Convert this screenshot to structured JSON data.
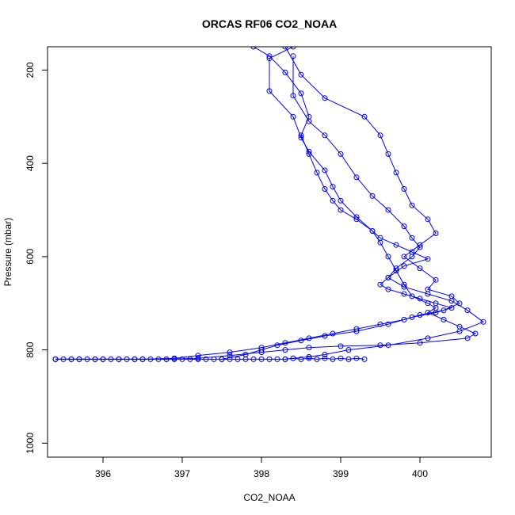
{
  "chart_data": {
    "type": "scatter",
    "title": "ORCAS RF06 CO2_NOAA",
    "xlabel": "CO2_NOAA",
    "ylabel": "Pressure (mbar)",
    "xlim": [
      395.3,
      400.9
    ],
    "ylim": [
      1030,
      150
    ],
    "y_reversed": true,
    "x_ticks": [
      396,
      397,
      398,
      399,
      400
    ],
    "y_ticks": [
      200,
      400,
      600,
      800,
      1000
    ],
    "grid": false,
    "legend": "none",
    "marker": "open-circle",
    "connected": true,
    "color": "#0000ff",
    "series": [
      {
        "x": [
          397.9,
          398.1,
          398.3,
          398.5,
          398.6,
          398.5,
          398.6,
          398.7,
          398.8,
          398.9,
          399.0,
          399.2,
          399.4,
          399.5,
          399.6,
          399.7,
          399.8,
          399.9,
          400.1,
          400.2,
          400.1,
          400.3,
          400.5,
          400.7,
          400.6,
          400.0,
          399.5,
          399.0,
          398.6,
          398.3,
          398.0,
          397.6,
          397.2,
          396.8,
          396.4,
          396.0,
          395.7,
          395.4
        ],
        "y": [
          150,
          170,
          205,
          250,
          300,
          340,
          380,
          420,
          455,
          480,
          500,
          520,
          545,
          570,
          600,
          630,
          660,
          685,
          700,
          710,
          720,
          735,
          750,
          765,
          775,
          785,
          790,
          792,
          795,
          800,
          805,
          812,
          818,
          820,
          820,
          820,
          820,
          820
        ]
      },
      {
        "x": [
          398.4,
          398.1,
          398.1,
          398.4,
          398.5,
          398.6,
          398.8,
          398.9,
          399.0,
          399.2,
          399.4,
          399.5,
          399.7,
          399.9,
          400.1,
          399.8,
          399.6,
          399.5,
          399.6,
          399.8,
          400.0,
          400.2,
          400.4,
          400.2,
          399.9,
          399.6,
          399.2,
          398.8,
          398.5,
          398.2,
          398.0,
          397.8,
          397.5
        ],
        "y": [
          150,
          175,
          245,
          300,
          345,
          375,
          415,
          450,
          480,
          515,
          545,
          560,
          575,
          590,
          605,
          620,
          645,
          660,
          670,
          680,
          690,
          700,
          710,
          720,
          730,
          745,
          760,
          770,
          780,
          790,
          800,
          810,
          820
        ]
      },
      {
        "x": [
          398.3,
          398.5,
          398.8,
          399.3,
          399.5,
          399.6,
          399.7,
          399.8,
          399.9,
          400.1,
          400.2,
          400.0,
          399.8,
          400.0,
          400.2,
          400.1,
          400.4,
          400.5,
          400.3,
          400.0,
          399.8,
          399.5,
          399.2,
          398.9,
          398.6,
          398.3,
          398.0,
          397.6,
          397.2,
          396.9,
          396.5,
          396.2,
          395.9,
          395.6,
          395.4
        ],
        "y": [
          150,
          210,
          260,
          300,
          340,
          380,
          420,
          455,
          490,
          520,
          550,
          575,
          600,
          625,
          650,
          670,
          685,
          700,
          715,
          725,
          735,
          745,
          755,
          765,
          775,
          785,
          795,
          805,
          812,
          818,
          820,
          820,
          820,
          820,
          820
        ]
      },
      {
        "x": [
          398.4,
          398.4,
          398.6,
          398.8,
          399.0,
          399.2,
          399.4,
          399.6,
          399.8,
          399.9,
          400.0,
          399.9,
          399.7,
          399.6,
          399.8,
          400.1,
          400.4,
          400.6,
          400.8,
          400.5,
          400.1,
          399.6,
          399.1,
          398.8,
          398.6,
          398.4,
          398.3
        ],
        "y": [
          170,
          255,
          310,
          340,
          380,
          430,
          470,
          500,
          535,
          560,
          580,
          600,
          625,
          645,
          665,
          680,
          695,
          715,
          740,
          760,
          775,
          790,
          800,
          810,
          815,
          818,
          820
        ]
      },
      {
        "x": [
          395.4,
          395.5,
          395.6,
          395.7,
          395.8,
          395.9,
          396.0,
          396.1,
          396.2,
          396.3,
          396.4,
          396.5,
          396.6,
          396.7,
          396.8,
          396.9,
          397.0,
          397.1,
          397.2,
          397.3,
          397.4,
          397.5,
          397.6,
          397.7,
          397.8,
          397.9,
          398.0,
          398.1,
          398.2,
          398.3,
          398.4,
          398.5,
          398.6,
          398.7,
          398.8,
          398.9,
          399.0,
          399.1,
          399.2,
          399.3
        ],
        "y": [
          820,
          820,
          820,
          820,
          820,
          820,
          820,
          820,
          820,
          820,
          820,
          820,
          820,
          820,
          820,
          820,
          820,
          820,
          820,
          820,
          820,
          820,
          820,
          820,
          820,
          820,
          820,
          820,
          820,
          820,
          818,
          820,
          818,
          820,
          818,
          820,
          818,
          820,
          818,
          820
        ]
      }
    ]
  }
}
